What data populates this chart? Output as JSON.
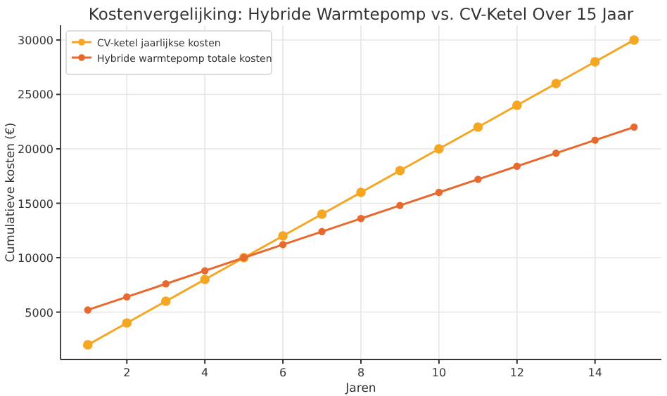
{
  "chart_data": {
    "type": "line",
    "title": "Kostenvergelijking: Hybride Warmtepomp vs. CV-Ketel Over 15 Jaar",
    "xlabel": "Jaren",
    "ylabel": "Cumulatieve kosten (€)",
    "x": [
      1,
      2,
      3,
      4,
      5,
      6,
      7,
      8,
      9,
      10,
      11,
      12,
      13,
      14,
      15
    ],
    "series": [
      {
        "name": "CV-ketel jaarlijkse kosten",
        "color": "#f5a623",
        "values": [
          2000,
          4000,
          6000,
          8000,
          10000,
          12000,
          14000,
          16000,
          18000,
          20000,
          22000,
          24000,
          26000,
          28000,
          30000
        ]
      },
      {
        "name": "Hybride warmtepomp totale kosten",
        "color": "#e8692e",
        "values": [
          5200,
          6400,
          7600,
          8800,
          10000,
          11200,
          12400,
          13600,
          14800,
          16000,
          17200,
          18400,
          19600,
          20800,
          22000
        ]
      }
    ],
    "xlim": [
      0.3,
      15.7
    ],
    "xticks": [
      2,
      4,
      6,
      8,
      10,
      12,
      14
    ],
    "ylim": [
      650,
      31350
    ],
    "yticks": [
      5000,
      10000,
      15000,
      20000,
      25000,
      30000
    ],
    "grid": true,
    "legend": "top left",
    "marker": "circle",
    "line_style": "solid"
  }
}
